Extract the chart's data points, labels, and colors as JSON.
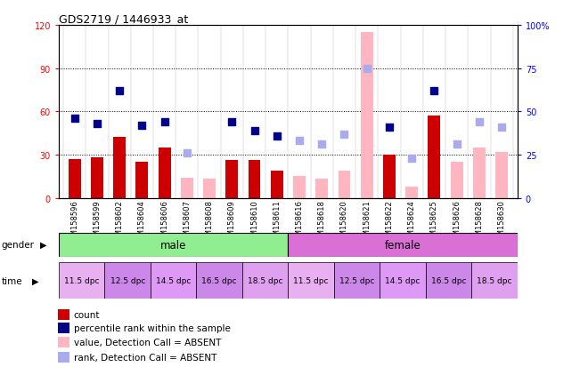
{
  "title": "GDS2719 / 1446933_at",
  "samples": [
    "GSM158596",
    "GSM158599",
    "GSM158602",
    "GSM158604",
    "GSM158606",
    "GSM158607",
    "GSM158608",
    "GSM158609",
    "GSM158610",
    "GSM158611",
    "GSM158616",
    "GSM158618",
    "GSM158620",
    "GSM158621",
    "GSM158622",
    "GSM158624",
    "GSM158625",
    "GSM158626",
    "GSM158628",
    "GSM158630"
  ],
  "count_values": [
    27,
    28,
    42,
    25,
    35,
    null,
    null,
    26,
    26,
    19,
    null,
    null,
    null,
    null,
    30,
    null,
    57,
    null,
    null,
    null
  ],
  "count_absent": [
    null,
    null,
    null,
    null,
    null,
    14,
    13,
    null,
    null,
    null,
    15,
    13,
    19,
    115,
    null,
    8,
    null,
    25,
    35,
    32
  ],
  "rank_values": [
    46,
    43,
    62,
    42,
    44,
    null,
    null,
    44,
    39,
    36,
    null,
    null,
    null,
    null,
    41,
    null,
    62,
    null,
    null,
    null
  ],
  "rank_absent": [
    null,
    null,
    null,
    null,
    null,
    26,
    null,
    null,
    null,
    null,
    33,
    31,
    37,
    75,
    null,
    23,
    null,
    31,
    44,
    41
  ],
  "ylim_left": [
    0,
    120
  ],
  "ylim_right": [
    0,
    100
  ],
  "yticks_left": [
    0,
    30,
    60,
    90,
    120
  ],
  "yticks_right": [
    0,
    25,
    50,
    75,
    100
  ],
  "ytick_labels_left": [
    "0",
    "30",
    "60",
    "90",
    "120"
  ],
  "ytick_labels_right": [
    "0",
    "25",
    "50",
    "75",
    "100%"
  ],
  "bar_color_count": "#cc0000",
  "bar_color_absent": "#ffb6c1",
  "dot_color_rank": "#00008b",
  "dot_color_rank_absent": "#aaaaee",
  "bar_width": 0.55,
  "dot_size": 40,
  "gender_male_color": "#90ee90",
  "gender_female_color": "#da70d6",
  "time_colors": [
    "#e8b0f0",
    "#cc88e8",
    "#dd99f5",
    "#cc88e8",
    "#e0a0f0"
  ],
  "time_labels": [
    "11.5 dpc",
    "12.5 dpc",
    "14.5 dpc",
    "16.5 dpc",
    "18.5 dpc"
  ],
  "legend_colors": [
    "#cc0000",
    "#00008b",
    "#ffb6c1",
    "#aaaaee"
  ],
  "legend_labels": [
    "count",
    "percentile rank within the sample",
    "value, Detection Call = ABSENT",
    "rank, Detection Call = ABSENT"
  ]
}
